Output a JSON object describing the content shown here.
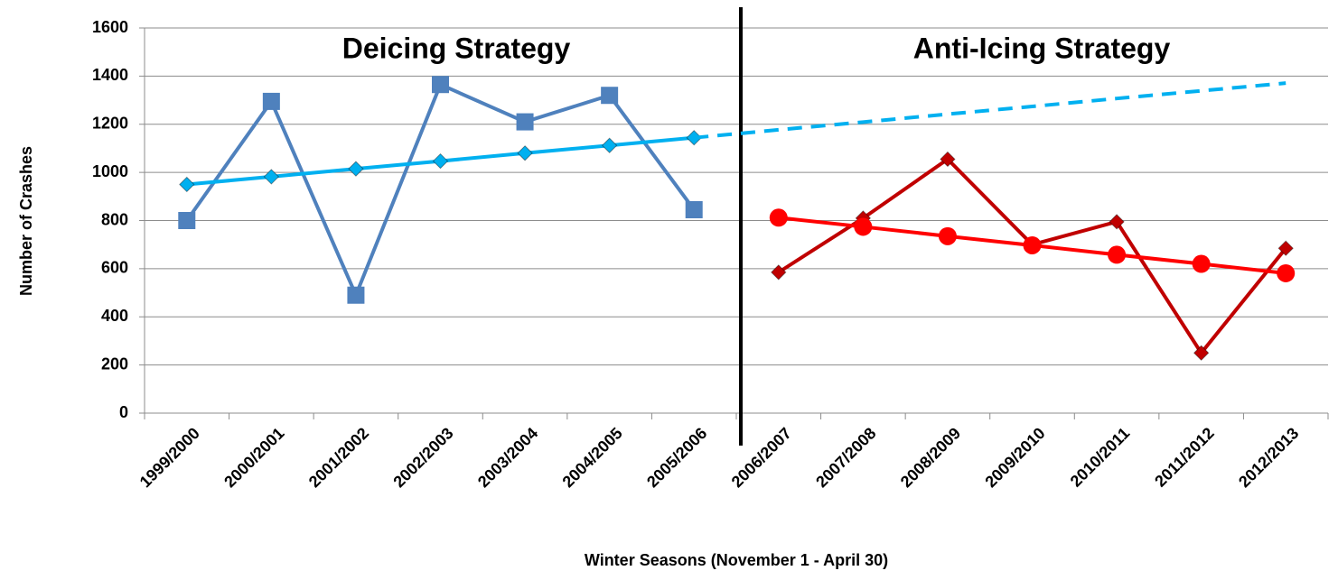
{
  "chart_data": {
    "type": "line",
    "categories": [
      "1999/2000",
      "2000/2001",
      "2001/2002",
      "2002/2003",
      "2003/2004",
      "2004/2005",
      "2005/2006",
      "2006/2007",
      "2007/2008",
      "2008/2009",
      "2009/2010",
      "2010/2011",
      "2011/2012",
      "2012/2013"
    ],
    "series": [
      {
        "color": "#4f81bd",
        "marker": "square",
        "dashed": false,
        "values": [
          800,
          1295,
          490,
          1365,
          1210,
          1320,
          845,
          null,
          null,
          null,
          null,
          null,
          null,
          null
        ]
      },
      {
        "color": "#00b0f0",
        "marker": "diamond",
        "dashed": false,
        "values": [
          950,
          982,
          1015,
          1047,
          1080,
          1112,
          1144,
          null,
          null,
          null,
          null,
          null,
          null,
          null
        ]
      },
      {
        "color": "#00b0f0",
        "marker": "none",
        "dashed": true,
        "values": [
          null,
          null,
          null,
          null,
          null,
          null,
          1144,
          1177,
          1209,
          1242,
          1274,
          1307,
          1339,
          1371
        ]
      },
      {
        "color": "#c00000",
        "marker": "diamond",
        "dashed": false,
        "values": [
          null,
          null,
          null,
          null,
          null,
          null,
          null,
          585,
          810,
          1055,
          700,
          795,
          250,
          685
        ]
      },
      {
        "color": "#ff0000",
        "marker": "circle",
        "dashed": false,
        "values": [
          null,
          null,
          null,
          null,
          null,
          null,
          null,
          812,
          774,
          735,
          697,
          658,
          620,
          581
        ]
      }
    ],
    "ylim": [
      0,
      1600
    ],
    "yticks": [
      0,
      200,
      400,
      600,
      800,
      1000,
      1200,
      1400,
      1600
    ],
    "grid": true,
    "y_label": "Number of Crashes",
    "x_label": "Winter Seasons (November 1 - April 30)",
    "annotations": [
      "Deicing Strategy",
      "Anti-Icing Strategy"
    ]
  }
}
